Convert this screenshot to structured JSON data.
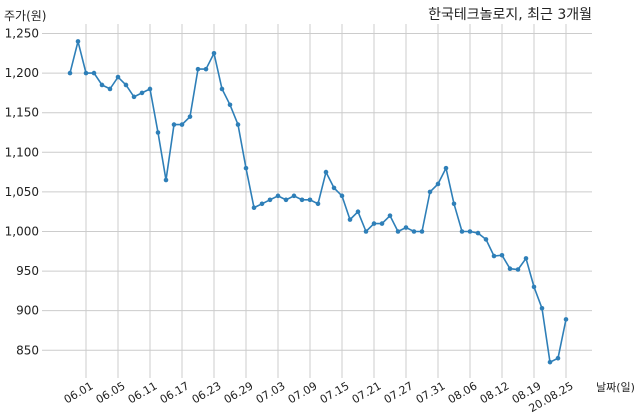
{
  "chart_data": {
    "type": "line",
    "title": "한국테크놀로지, 최근 3개월",
    "ylabel": "주가(원)",
    "xlabel": "날짜(일)",
    "ylim": [
      815,
      1262
    ],
    "yticks": [
      850,
      900,
      950,
      1000,
      1050,
      1100,
      1150,
      1200,
      1250
    ],
    "ytick_labels": [
      "850",
      "900",
      "950",
      "1,000",
      "1,050",
      "1,100",
      "1,150",
      "1,200",
      "1,250"
    ],
    "xtick_labels": [
      "06.01",
      "06.05",
      "06.11",
      "06.17",
      "06.23",
      "06.29",
      "07.03",
      "07.09",
      "07.15",
      "07.21",
      "07.27",
      "07.31",
      "08.06",
      "08.12",
      "08.19",
      "20.08.25"
    ],
    "xtick_index": [
      2,
      6,
      10,
      14,
      18,
      22,
      26,
      30,
      34,
      38,
      42,
      46,
      50,
      54,
      58,
      62
    ],
    "grid": true,
    "color": "#2e7fb8",
    "values": [
      1200,
      1240,
      1200,
      1200,
      1185,
      1180,
      1195,
      1185,
      1170,
      1175,
      1180,
      1125,
      1065,
      1135,
      1135,
      1145,
      1205,
      1205,
      1225,
      1180,
      1160,
      1135,
      1080,
      1030,
      1035,
      1040,
      1045,
      1040,
      1045,
      1040,
      1040,
      1035,
      1075,
      1055,
      1045,
      1015,
      1025,
      1000,
      1010,
      1010,
      1020,
      1000,
      1005,
      1000,
      1000,
      1050,
      1060,
      1080,
      1035,
      1000,
      1000,
      998,
      990,
      969,
      970,
      953,
      952,
      966,
      930,
      903,
      835,
      840,
      889
    ]
  }
}
